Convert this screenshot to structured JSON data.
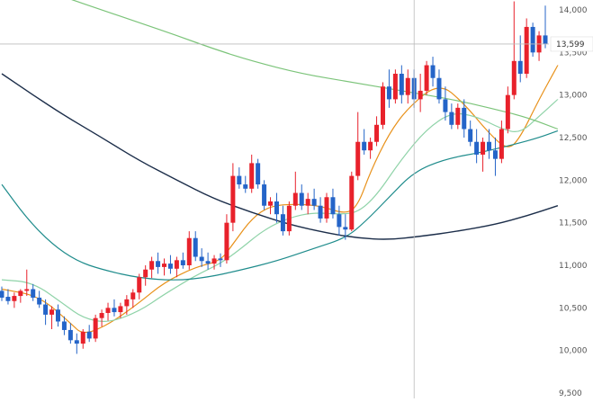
{
  "chart_data": {
    "type": "candlestick",
    "colors": {
      "up": "#e8212b",
      "down": "#2464c8",
      "ma_fast": "#e8911a",
      "ma_mid": "#8fd3a8",
      "ma_teal": "#1f8c8c",
      "ma_green": "#7cc47a",
      "ma_navy": "#1c2e4a",
      "grid": "#cccccc",
      "crosshair": "#bbbbbb",
      "axis_text": "#555555"
    },
    "ylim": [
      9500,
      14000
    ],
    "yticks": [
      "9,500",
      "10,000",
      "10,500",
      "11,000",
      "11,500",
      "12,000",
      "12,500",
      "13,000",
      "13,500",
      "14,000"
    ],
    "ytick_values": [
      9500,
      10000,
      10500,
      11000,
      11500,
      12000,
      12500,
      13000,
      13500,
      14000
    ],
    "last_price_label": "13,599",
    "last_price": 13599,
    "grid": true,
    "crosshair": {
      "x_index": 66,
      "y_value": 13599
    },
    "candles": [
      [
        10700,
        10750,
        10580,
        10620
      ],
      [
        10630,
        10720,
        10540,
        10580
      ],
      [
        10580,
        10680,
        10500,
        10640
      ],
      [
        10640,
        10720,
        10560,
        10700
      ],
      [
        10700,
        10950,
        10640,
        10720
      ],
      [
        10720,
        10780,
        10580,
        10620
      ],
      [
        10620,
        10700,
        10500,
        10540
      ],
      [
        10540,
        10600,
        10300,
        10420
      ],
      [
        10420,
        10520,
        10250,
        10480
      ],
      [
        10480,
        10540,
        10280,
        10340
      ],
      [
        10340,
        10400,
        10180,
        10240
      ],
      [
        10240,
        10320,
        10080,
        10120
      ],
      [
        10120,
        10200,
        9960,
        10080
      ],
      [
        10080,
        10250,
        10020,
        10220
      ],
      [
        10220,
        10300,
        10100,
        10140
      ],
      [
        10140,
        10420,
        10100,
        10380
      ],
      [
        10380,
        10480,
        10280,
        10440
      ],
      [
        10440,
        10560,
        10350,
        10500
      ],
      [
        10500,
        10600,
        10400,
        10450
      ],
      [
        10450,
        10560,
        10380,
        10520
      ],
      [
        10520,
        10650,
        10420,
        10600
      ],
      [
        10600,
        10720,
        10500,
        10680
      ],
      [
        10680,
        10900,
        10600,
        10860
      ],
      [
        10860,
        11000,
        10760,
        10950
      ],
      [
        10950,
        11100,
        10850,
        11050
      ],
      [
        11050,
        11150,
        10900,
        10980
      ],
      [
        10980,
        11080,
        10880,
        11020
      ],
      [
        11020,
        11120,
        10900,
        10960
      ],
      [
        10960,
        11100,
        10860,
        11060
      ],
      [
        11060,
        11150,
        10960,
        11000
      ],
      [
        11000,
        11400,
        10950,
        11320
      ],
      [
        11320,
        11400,
        11050,
        11100
      ],
      [
        11100,
        11200,
        10980,
        11050
      ],
      [
        11050,
        11150,
        10950,
        11020
      ],
      [
        11020,
        11120,
        10950,
        11080
      ],
      [
        11080,
        11140,
        10980,
        11060
      ],
      [
        11060,
        11600,
        11020,
        11500
      ],
      [
        11500,
        12200,
        11400,
        12050
      ],
      [
        12050,
        12150,
        11900,
        11950
      ],
      [
        11950,
        12050,
        11850,
        11900
      ],
      [
        11900,
        12300,
        11850,
        12200
      ],
      [
        12200,
        12250,
        11900,
        11950
      ],
      [
        11950,
        12000,
        11650,
        11700
      ],
      [
        11700,
        11800,
        11600,
        11750
      ],
      [
        11750,
        11850,
        11500,
        11600
      ],
      [
        11600,
        11700,
        11350,
        11400
      ],
      [
        11400,
        11750,
        11350,
        11700
      ],
      [
        11700,
        12100,
        11650,
        11850
      ],
      [
        11850,
        11950,
        11650,
        11700
      ],
      [
        11700,
        11850,
        11600,
        11780
      ],
      [
        11780,
        11900,
        11650,
        11700
      ],
      [
        11700,
        11800,
        11500,
        11550
      ],
      [
        11550,
        11850,
        11500,
        11800
      ],
      [
        11800,
        11900,
        11550,
        11600
      ],
      [
        11600,
        11700,
        11350,
        11450
      ],
      [
        11450,
        11600,
        11300,
        11420
      ],
      [
        11420,
        12100,
        11400,
        12050
      ],
      [
        12050,
        12800,
        12000,
        12450
      ],
      [
        12450,
        12600,
        12300,
        12350
      ],
      [
        12350,
        12500,
        12250,
        12450
      ],
      [
        12450,
        12750,
        12400,
        12650
      ],
      [
        12650,
        13150,
        12600,
        13100
      ],
      [
        13100,
        13300,
        12850,
        12950
      ],
      [
        12950,
        13300,
        12900,
        13250
      ],
      [
        13250,
        13350,
        12900,
        13000
      ],
      [
        13000,
        13300,
        12900,
        13200
      ],
      [
        13200,
        13300,
        12850,
        12950
      ],
      [
        12950,
        13250,
        12800,
        13050
      ],
      [
        13050,
        13400,
        13000,
        13350
      ],
      [
        13350,
        13450,
        13100,
        13200
      ],
      [
        13200,
        13300,
        12900,
        12950
      ],
      [
        12950,
        13100,
        12700,
        12800
      ],
      [
        12800,
        12900,
        12600,
        12650
      ],
      [
        12650,
        12900,
        12600,
        12850
      ],
      [
        12850,
        12950,
        12500,
        12600
      ],
      [
        12600,
        12700,
        12400,
        12450
      ],
      [
        12450,
        12600,
        12200,
        12300
      ],
      [
        12300,
        12500,
        12100,
        12450
      ],
      [
        12450,
        12600,
        12250,
        12350
      ],
      [
        12350,
        12500,
        12050,
        12250
      ],
      [
        12250,
        12700,
        12200,
        12600
      ],
      [
        12600,
        13100,
        12550,
        13000
      ],
      [
        13000,
        14100,
        12950,
        13400
      ],
      [
        13400,
        13700,
        13150,
        13250
      ],
      [
        13250,
        13900,
        13200,
        13800
      ],
      [
        13800,
        13850,
        13450,
        13500
      ],
      [
        13500,
        13750,
        13400,
        13700
      ],
      [
        13700,
        14050,
        13550,
        13599
      ]
    ],
    "moving_averages": [
      {
        "key": "ma_fast",
        "values": [
          [
            0,
            10720
          ],
          [
            6,
            10640
          ],
          [
            11,
            10320
          ],
          [
            13,
            10180
          ],
          [
            17,
            10300
          ],
          [
            22,
            10560
          ],
          [
            26,
            10800
          ],
          [
            31,
            10980
          ],
          [
            35,
            11050
          ],
          [
            37,
            11250
          ],
          [
            40,
            11550
          ],
          [
            43,
            11700
          ],
          [
            47,
            11720
          ],
          [
            51,
            11700
          ],
          [
            55,
            11600
          ],
          [
            57,
            11700
          ],
          [
            59,
            12100
          ],
          [
            62,
            12550
          ],
          [
            65,
            12850
          ],
          [
            70,
            13150
          ],
          [
            74,
            12900
          ],
          [
            78,
            12550
          ],
          [
            81,
            12350
          ],
          [
            83,
            12500
          ],
          [
            86,
            12950
          ],
          [
            89,
            13350
          ]
        ]
      },
      {
        "key": "ma_mid",
        "values": [
          [
            0,
            10830
          ],
          [
            5,
            10800
          ],
          [
            10,
            10540
          ],
          [
            13,
            10380
          ],
          [
            17,
            10320
          ],
          [
            22,
            10460
          ],
          [
            26,
            10660
          ],
          [
            31,
            10880
          ],
          [
            35,
            11020
          ],
          [
            38,
            11180
          ],
          [
            42,
            11420
          ],
          [
            46,
            11560
          ],
          [
            50,
            11620
          ],
          [
            54,
            11600
          ],
          [
            57,
            11620
          ],
          [
            60,
            11820
          ],
          [
            64,
            12250
          ],
          [
            68,
            12600
          ],
          [
            72,
            12800
          ],
          [
            76,
            12750
          ],
          [
            80,
            12600
          ],
          [
            83,
            12550
          ],
          [
            86,
            12750
          ],
          [
            89,
            12950
          ]
        ]
      },
      {
        "key": "ma_teal",
        "values": [
          [
            0,
            11950
          ],
          [
            4,
            11550
          ],
          [
            8,
            11250
          ],
          [
            12,
            11050
          ],
          [
            16,
            10950
          ],
          [
            22,
            10850
          ],
          [
            28,
            10820
          ],
          [
            33,
            10860
          ],
          [
            38,
            10940
          ],
          [
            44,
            11050
          ],
          [
            50,
            11200
          ],
          [
            55,
            11320
          ],
          [
            58,
            11500
          ],
          [
            62,
            11800
          ],
          [
            66,
            12100
          ],
          [
            71,
            12250
          ],
          [
            77,
            12330
          ],
          [
            82,
            12420
          ],
          [
            86,
            12500
          ],
          [
            89,
            12580
          ]
        ]
      },
      {
        "key": "ma_green",
        "values": [
          [
            0,
            14380
          ],
          [
            5,
            14280
          ],
          [
            10,
            14150
          ],
          [
            16,
            14000
          ],
          [
            22,
            13850
          ],
          [
            28,
            13700
          ],
          [
            34,
            13540
          ],
          [
            40,
            13400
          ],
          [
            48,
            13250
          ],
          [
            56,
            13150
          ],
          [
            64,
            13050
          ],
          [
            72,
            12950
          ],
          [
            78,
            12850
          ],
          [
            84,
            12740
          ],
          [
            89,
            12600
          ]
        ]
      },
      {
        "key": "ma_navy",
        "values": [
          [
            0,
            13250
          ],
          [
            5,
            13000
          ],
          [
            10,
            12760
          ],
          [
            16,
            12500
          ],
          [
            22,
            12230
          ],
          [
            28,
            12000
          ],
          [
            34,
            11780
          ],
          [
            40,
            11620
          ],
          [
            46,
            11480
          ],
          [
            52,
            11380
          ],
          [
            57,
            11320
          ],
          [
            62,
            11300
          ],
          [
            67,
            11340
          ],
          [
            73,
            11400
          ],
          [
            79,
            11480
          ],
          [
            84,
            11580
          ],
          [
            89,
            11700
          ]
        ]
      }
    ]
  }
}
